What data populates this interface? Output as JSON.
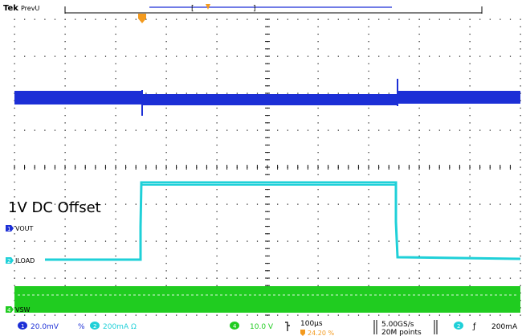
{
  "scope": {
    "brand": "Tek",
    "acq_status": "PrevU",
    "annotation": "1V DC Offset",
    "channels": [
      {
        "marker": "1",
        "label": "VOUT",
        "color": "#1c2fd6"
      },
      {
        "marker": "2",
        "label": "ILOAD",
        "color": "#1fd0d8"
      },
      {
        "marker": "4",
        "label": "VSW",
        "color": "#20cc20"
      }
    ],
    "status_bar": {
      "ch1_marker": "1",
      "ch1_scale": "20.0mV",
      "ch1_coupling": "%",
      "ch2_marker": "2",
      "ch2_scale": "200mA Ω",
      "ch4_marker": "4",
      "ch4_scale": "10.0 V",
      "timebase": "100µs",
      "trigger_pos": "24.20 %",
      "sample_rate": "5.00GS/s",
      "record_length": "20M points",
      "trig_marker": "2",
      "trig_slope": "ƒ",
      "trig_level": "200mA"
    },
    "colors": {
      "ch1": "#1c2fd6",
      "ch2": "#1fd0d8",
      "ch4": "#20cc20",
      "trigger": "#f39a1e",
      "grid": "#111111"
    }
  }
}
